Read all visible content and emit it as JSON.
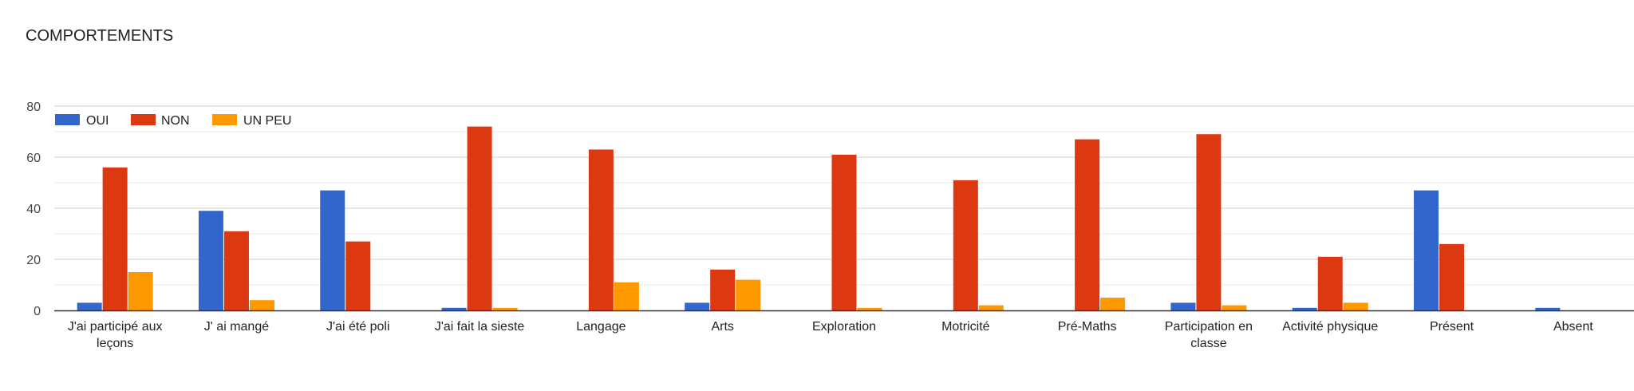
{
  "chart_data": {
    "type": "bar",
    "title": "COMPORTEMENTS",
    "categories": [
      [
        "J'ai participé aux",
        "leçons"
      ],
      [
        "J' ai mangé"
      ],
      [
        "J'ai été poli"
      ],
      [
        "J'ai fait la sieste"
      ],
      [
        "Langage"
      ],
      [
        "Arts"
      ],
      [
        "Exploration"
      ],
      [
        "Motricité"
      ],
      [
        "Pré-Maths"
      ],
      [
        "Participation en",
        "classe"
      ],
      [
        "Activité physique"
      ],
      [
        "Présent"
      ],
      [
        "Absent"
      ]
    ],
    "series": [
      {
        "name": "OUI",
        "color": "#3366cc",
        "values": [
          3,
          39,
          47,
          1,
          0,
          3,
          0,
          0,
          0,
          3,
          1,
          47,
          1
        ]
      },
      {
        "name": "NON",
        "color": "#dc3912",
        "values": [
          56,
          31,
          27,
          72,
          63,
          16,
          61,
          51,
          67,
          69,
          21,
          26,
          0
        ]
      },
      {
        "name": "UN PEU",
        "color": "#ff9900",
        "values": [
          15,
          4,
          0,
          1,
          11,
          12,
          1,
          2,
          5,
          2,
          3,
          0,
          0
        ]
      }
    ],
    "ylim": [
      0,
      80
    ],
    "yticks": [
      0,
      20,
      40,
      60,
      80
    ],
    "grid": true,
    "minor_grid": true,
    "legend_position": "top-left"
  }
}
